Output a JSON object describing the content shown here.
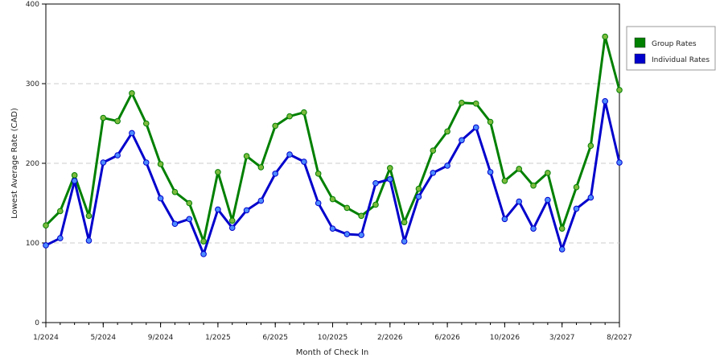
{
  "chart_data": {
    "type": "line",
    "title": "",
    "xlabel": "Month of Check In",
    "ylabel": "Lowest Average Rate (CAD)",
    "ylim": [
      0,
      400
    ],
    "yticks": [
      0,
      100,
      200,
      300,
      400
    ],
    "x_tick_labels": [
      "1/2024",
      "5/2024",
      "9/2024",
      "1/2025",
      "6/2025",
      "10/2025",
      "2/2026",
      "6/2026",
      "10/2026",
      "3/2027",
      "8/2027"
    ],
    "x_tick_positions": [
      0,
      4,
      8,
      12,
      16,
      20,
      24,
      28,
      32,
      36,
      40
    ],
    "x_count": 41,
    "grid": "horizontal dashed",
    "legend_position": "right",
    "series": [
      {
        "name": "Group Rates",
        "color": "#008000",
        "marker_color": "#7cba3e",
        "values": [
          122,
          140,
          185,
          134,
          257,
          253,
          288,
          250,
          199,
          164,
          150,
          102,
          189,
          128,
          209,
          195,
          247,
          259,
          264,
          187,
          155,
          144,
          134,
          148,
          194,
          126,
          168,
          216,
          240,
          276,
          275,
          252,
          178,
          193,
          172,
          188,
          118,
          170,
          222,
          359,
          292
        ]
      },
      {
        "name": "Individual Rates",
        "color": "#0000cc",
        "marker_color": "#4d8cff",
        "values": [
          97,
          106,
          178,
          103,
          201,
          210,
          238,
          201,
          156,
          124,
          130,
          86,
          142,
          119,
          141,
          153,
          187,
          211,
          202,
          150,
          118,
          111,
          110,
          175,
          180,
          102,
          158,
          188,
          197,
          229,
          245,
          189,
          130,
          152,
          118,
          154,
          92,
          143,
          157,
          278,
          201
        ]
      }
    ]
  }
}
